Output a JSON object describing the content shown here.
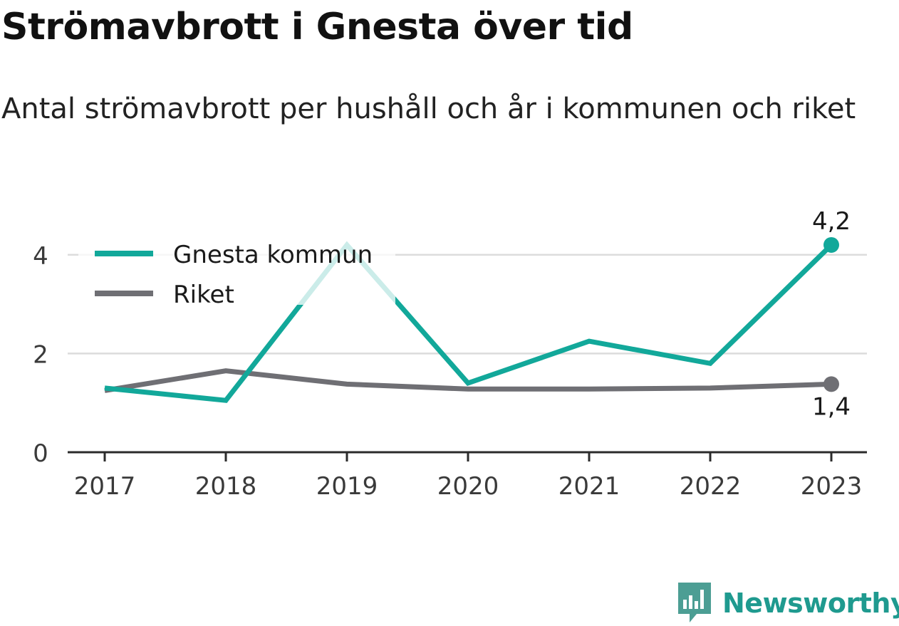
{
  "chart_data": {
    "type": "line",
    "title": "Strömavbrott i Gnesta över tid",
    "subtitle": "Antal strömavbrott per hushåll och år i kommunen och riket",
    "categories": [
      "2017",
      "2018",
      "2019",
      "2020",
      "2021",
      "2022",
      "2023"
    ],
    "series": [
      {
        "name": "Gnesta kommun",
        "color": "#12a89a",
        "values": [
          1.3,
          1.05,
          4.2,
          1.4,
          2.25,
          1.8,
          4.2
        ]
      },
      {
        "name": "Riket",
        "color": "#6f6f74",
        "values": [
          1.25,
          1.65,
          1.38,
          1.28,
          1.28,
          1.3,
          1.38
        ]
      }
    ],
    "ylim": [
      0,
      4.6
    ],
    "yticks": [
      "0",
      "2",
      "4"
    ],
    "ytick_values": [
      0,
      2,
      4
    ],
    "grid": true,
    "legend_position": "top-left",
    "end_labels": [
      "4,2",
      "1,4"
    ]
  },
  "brand": {
    "name": "Newsworthy",
    "color": "#1f9a8f"
  }
}
